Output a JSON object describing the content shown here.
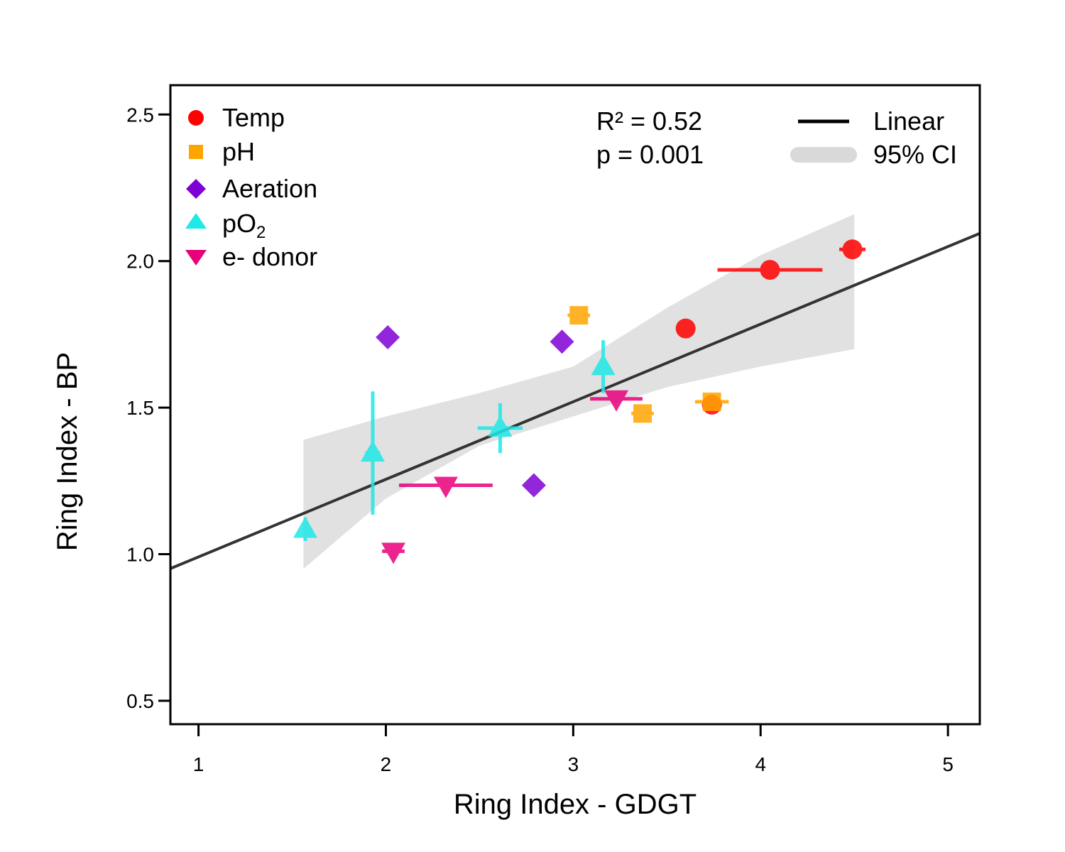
{
  "chart_data": {
    "type": "scatter",
    "title": "",
    "xlabel": "Ring Index - GDGT",
    "ylabel": "Ring Index - BP",
    "xlim": [
      0.85,
      5.17
    ],
    "ylim": [
      0.42,
      2.6
    ],
    "xticks": [
      1,
      2,
      3,
      4,
      5
    ],
    "xtick_labels": [
      "1",
      "2",
      "3",
      "4",
      "5"
    ],
    "yticks": [
      0.5,
      1.0,
      1.5,
      2.0,
      2.5
    ],
    "ytick_labels": [
      "0.5",
      "1.0",
      "1.5",
      "2.0",
      "2.5"
    ],
    "grid": false,
    "colors": {
      "temp": "#ff0000",
      "ph": "#ffa500",
      "aeration": "#7f00d4",
      "po2": "#1ee8e8",
      "edonor": "#e8007a",
      "fit_line": "#000000",
      "ci_band": "#d9d9d9"
    },
    "series": [
      {
        "key": "temp",
        "name": "Temp",
        "marker": "circle",
        "points": [
          {
            "x": 3.6,
            "y": 1.77,
            "xerr": 0.05,
            "yerr": 0.0
          },
          {
            "x": 4.05,
            "y": 1.97,
            "xerr": 0.28,
            "yerr": 0.0
          },
          {
            "x": 4.49,
            "y": 2.04,
            "xerr": 0.07,
            "yerr": 0.0
          },
          {
            "x": 3.74,
            "y": 1.51,
            "xerr": 0.0,
            "yerr": 0.0
          }
        ]
      },
      {
        "key": "ph",
        "name": "pH",
        "marker": "square",
        "points": [
          {
            "x": 3.03,
            "y": 1.815,
            "xerr": 0.06,
            "yerr": 0.0
          },
          {
            "x": 3.37,
            "y": 1.48,
            "xerr": 0.06,
            "yerr": 0.0
          },
          {
            "x": 3.74,
            "y": 1.52,
            "xerr": 0.09,
            "yerr": 0.0
          }
        ]
      },
      {
        "key": "aeration",
        "name": "Aeration",
        "marker": "diamond",
        "points": [
          {
            "x": 2.01,
            "y": 1.74,
            "xerr": 0.0,
            "yerr": 0.0
          },
          {
            "x": 2.94,
            "y": 1.725,
            "xerr": 0.0,
            "yerr": 0.0
          },
          {
            "x": 2.79,
            "y": 1.235,
            "xerr": 0.0,
            "yerr": 0.0
          }
        ]
      },
      {
        "key": "po2",
        "name": "pO2",
        "marker": "triangle-up",
        "points": [
          {
            "x": 1.57,
            "y": 1.085,
            "xerr": 0.0,
            "yerr": 0.04
          },
          {
            "x": 1.93,
            "y": 1.345,
            "xerr": 0.04,
            "yerr": 0.21
          },
          {
            "x": 2.61,
            "y": 1.43,
            "xerr": 0.12,
            "yerr": 0.085
          },
          {
            "x": 3.16,
            "y": 1.64,
            "xerr": 0.0,
            "yerr": 0.09
          }
        ]
      },
      {
        "key": "edonor",
        "name": "e- donor",
        "marker": "triangle-down",
        "points": [
          {
            "x": 2.04,
            "y": 1.01,
            "xerr": 0.06,
            "yerr": 0.0
          },
          {
            "x": 2.32,
            "y": 1.235,
            "xerr": 0.25,
            "yerr": 0.0
          },
          {
            "x": 3.23,
            "y": 1.53,
            "xerr": 0.14,
            "yerr": 0.0
          }
        ]
      }
    ],
    "fit": {
      "name": "Linear",
      "intercept": 0.726,
      "slope": 0.2647,
      "ci_label": "95% CI",
      "ci_band": [
        {
          "x": 1.56,
          "lower": 0.95,
          "upper": 1.39
        },
        {
          "x": 2.0,
          "lower": 1.19,
          "upper": 1.47
        },
        {
          "x": 2.5,
          "lower": 1.37,
          "upper": 1.55
        },
        {
          "x": 3.0,
          "lower": 1.47,
          "upper": 1.64
        },
        {
          "x": 3.5,
          "lower": 1.57,
          "upper": 1.84
        },
        {
          "x": 4.0,
          "lower": 1.64,
          "upper": 2.02
        },
        {
          "x": 4.5,
          "lower": 1.7,
          "upper": 2.16
        }
      ]
    },
    "stats": {
      "r2": "R² = 0.52",
      "p": "p = 0.001"
    },
    "legend": {
      "series_position": "top-left",
      "fit_position": "top-right",
      "po2_main": "pO",
      "po2_sub": "2"
    }
  }
}
